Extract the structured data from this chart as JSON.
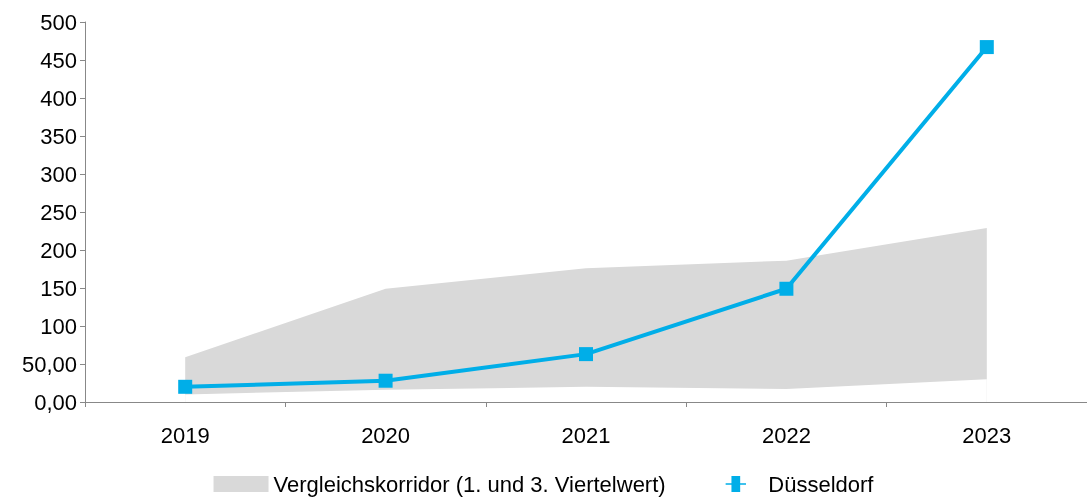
{
  "chart_data": {
    "type": "line",
    "categories": [
      "2019",
      "2020",
      "2021",
      "2022",
      "2023"
    ],
    "series": [
      {
        "name": "Vergleichskorridor (1. und 3. Viertelwert)",
        "type": "area",
        "color": "#d9d9d9",
        "values": [
          59,
          149,
          176,
          186,
          229
        ]
      },
      {
        "type": "area",
        "color": "#ffffff",
        "values": [
          10,
          16,
          20,
          17,
          30
        ]
      },
      {
        "name": "Düsseldorf",
        "marker": "square",
        "color": "#00aee8",
        "values": [
          20,
          28,
          63,
          149,
          467
        ]
      }
    ],
    "ylim": [
      0,
      500
    ],
    "yticks": [
      {
        "value": 0,
        "label": "0,00"
      },
      {
        "value": 50,
        "label": "50,00"
      },
      100,
      150,
      200,
      250,
      300,
      350,
      400,
      450,
      500
    ],
    "grid": false,
    "legend": "bottom"
  }
}
